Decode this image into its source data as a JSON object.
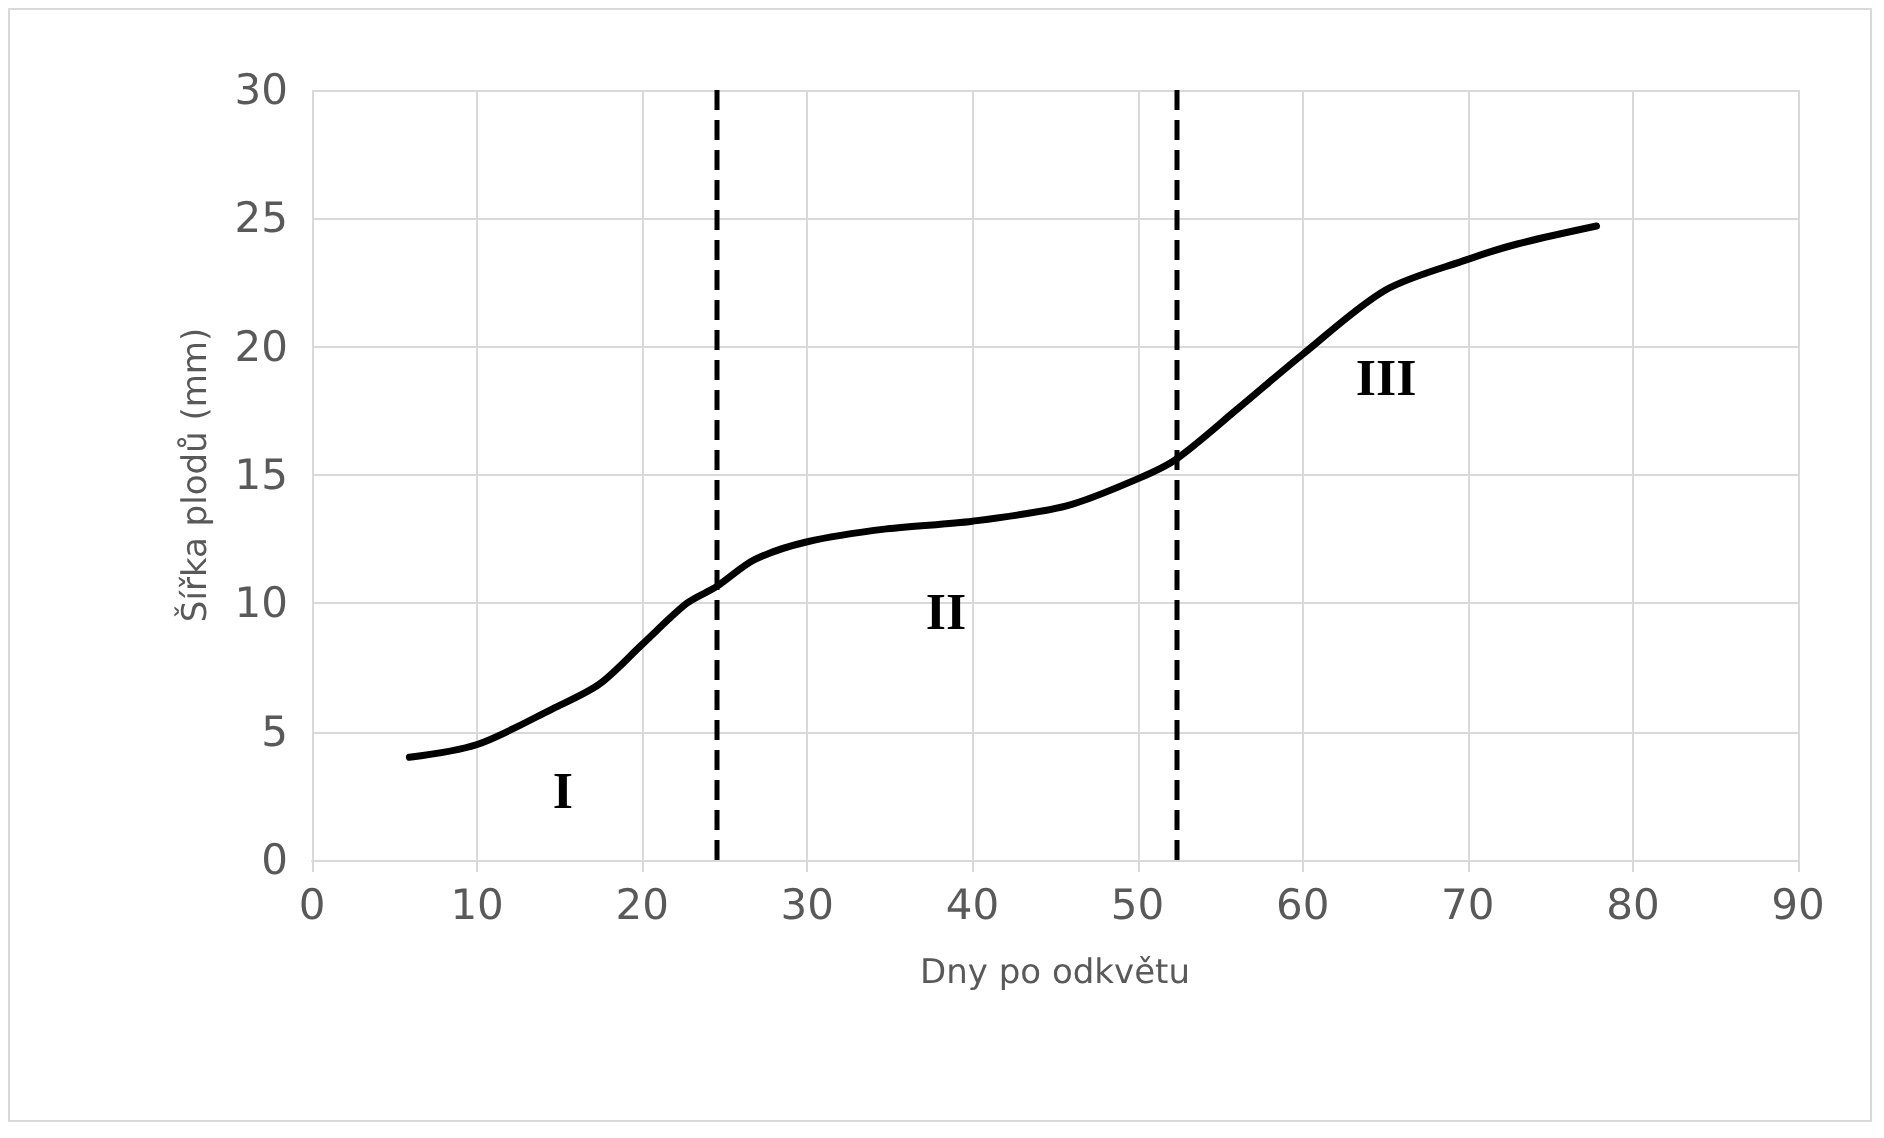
{
  "chart_data": {
    "type": "line",
    "xlabel": "Dny po odkvětu",
    "ylabel": "Šířka plodů (mm)",
    "x": [
      5.9,
      10,
      14.6,
      17.4,
      20,
      22.7,
      24.5,
      26.8,
      30,
      34.8,
      40,
      45.7,
      50,
      52.3,
      56.1,
      60,
      65,
      70,
      73,
      77.8
    ],
    "series": [
      {
        "color": "#000000",
        "values": [
          4.0,
          4.5,
          5.9,
          6.85,
          8.4,
          10.0,
          10.65,
          11.7,
          12.4,
          12.9,
          13.2,
          13.8,
          14.85,
          15.6,
          17.6,
          19.7,
          22.2,
          23.4,
          24.0,
          24.7
        ]
      }
    ],
    "xlim": [
      0,
      90
    ],
    "xticks": [
      0,
      10,
      20,
      30,
      40,
      50,
      60,
      70,
      80,
      90
    ],
    "ylim": [
      0,
      30
    ],
    "yticks": [
      0,
      5,
      10,
      15,
      20,
      25,
      30
    ],
    "grid": true,
    "marker": "none",
    "line_style": "solid",
    "ref_lines": [
      {
        "axis": "x",
        "value": 24.5,
        "color": "#000000",
        "line_style": "dashed"
      },
      {
        "axis": "x",
        "value": 52.3,
        "color": "#000000",
        "line_style": "dashed"
      }
    ],
    "annotations": [
      "I",
      "II",
      "III"
    ]
  }
}
